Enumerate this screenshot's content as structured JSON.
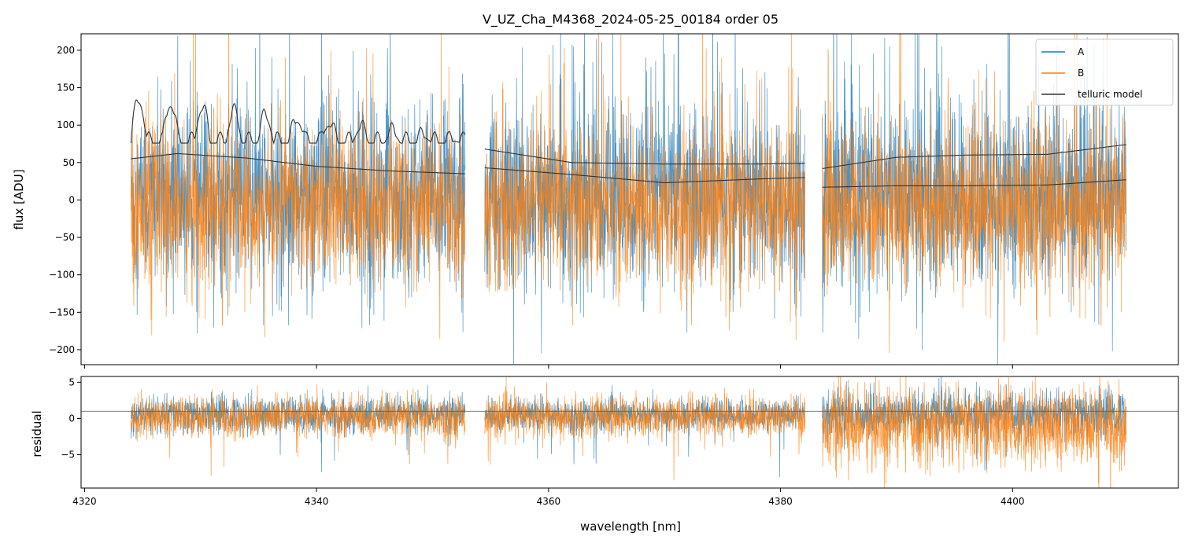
{
  "chart_data": [
    {
      "type": "line",
      "panel": "flux",
      "title": "V_UZ_Cha_M4368_2024-05-25_00184  order 05",
      "xlabel": "",
      "ylabel": "flux [ADU]",
      "xlim": [
        4319.7,
        4414.3
      ],
      "ylim": [
        -220,
        222
      ],
      "xticks": [
        4320,
        4340,
        4360,
        4380,
        4400
      ],
      "yticks": [
        -200,
        -150,
        -100,
        -50,
        0,
        50,
        100,
        150,
        200
      ],
      "ytick_labels": [
        "−200",
        "−150",
        "−100",
        "−50",
        "0",
        "50",
        "100",
        "150",
        "200"
      ],
      "segments": [
        [
          4324.0,
          4352.8
        ],
        [
          4354.5,
          4382.1
        ],
        [
          4383.6,
          4409.8
        ]
      ],
      "legend": {
        "placement": "top-right",
        "entries": [
          "A",
          "B",
          "telluric model"
        ]
      },
      "series": [
        {
          "name": "A",
          "color": "#1f77b4",
          "style": "noise",
          "center": 5,
          "amplitude": 110
        },
        {
          "name": "B",
          "color": "#ff7f0e",
          "style": "noise",
          "center": -10,
          "amplitude": 95
        },
        {
          "name": "telluric model",
          "color": "#333333",
          "upper_curve": {
            "x": [
              4324,
              4330,
              4337,
              4344,
              4352.8,
              4354.5,
              4362,
              4370,
              4378,
              4382.1,
              4383.6,
              4390,
              4396,
              4403,
              4409.8
            ],
            "y": [
              76,
              76,
              76,
              76,
              76,
              68,
              50,
              48,
              48,
              49,
              42,
              57,
              60,
              61,
              74
            ]
          },
          "lower_curve": {
            "x": [
              4324,
              4328,
              4334,
              4340,
              4346,
              4352.8,
              4354.5,
              4362,
              4370,
              4378,
              4382.1,
              4383.6,
              4390,
              4396,
              4403,
              4409.8
            ],
            "y": [
              55,
              62,
              56,
              45,
              39,
              35,
              43,
              34,
              23,
              28,
              30,
              17,
              19,
              19,
              20,
              27
            ]
          }
        }
      ]
    },
    {
      "type": "line",
      "panel": "residual",
      "xlabel": "wavelength [nm]",
      "ylabel": "residual",
      "xlim": [
        4319.7,
        4414.3
      ],
      "ylim": [
        -9.6,
        5.8
      ],
      "xticks": [
        4320,
        4340,
        4360,
        4380,
        4400
      ],
      "xtick_labels": [
        "4320",
        "4340",
        "4360",
        "4380",
        "4400"
      ],
      "yticks": [
        -5,
        0,
        5
      ],
      "ytick_labels": [
        "−5",
        "0",
        "5"
      ],
      "reference_line": 1,
      "series": [
        {
          "name": "A",
          "color": "#1f77b4",
          "amplitudes": [
            2.2,
            1.8,
            2.8
          ],
          "center": 0.5
        },
        {
          "name": "B",
          "color": "#ff7f0e",
          "amplitudes": [
            2.4,
            2.4,
            4.5
          ],
          "center": 0.2
        }
      ]
    }
  ]
}
